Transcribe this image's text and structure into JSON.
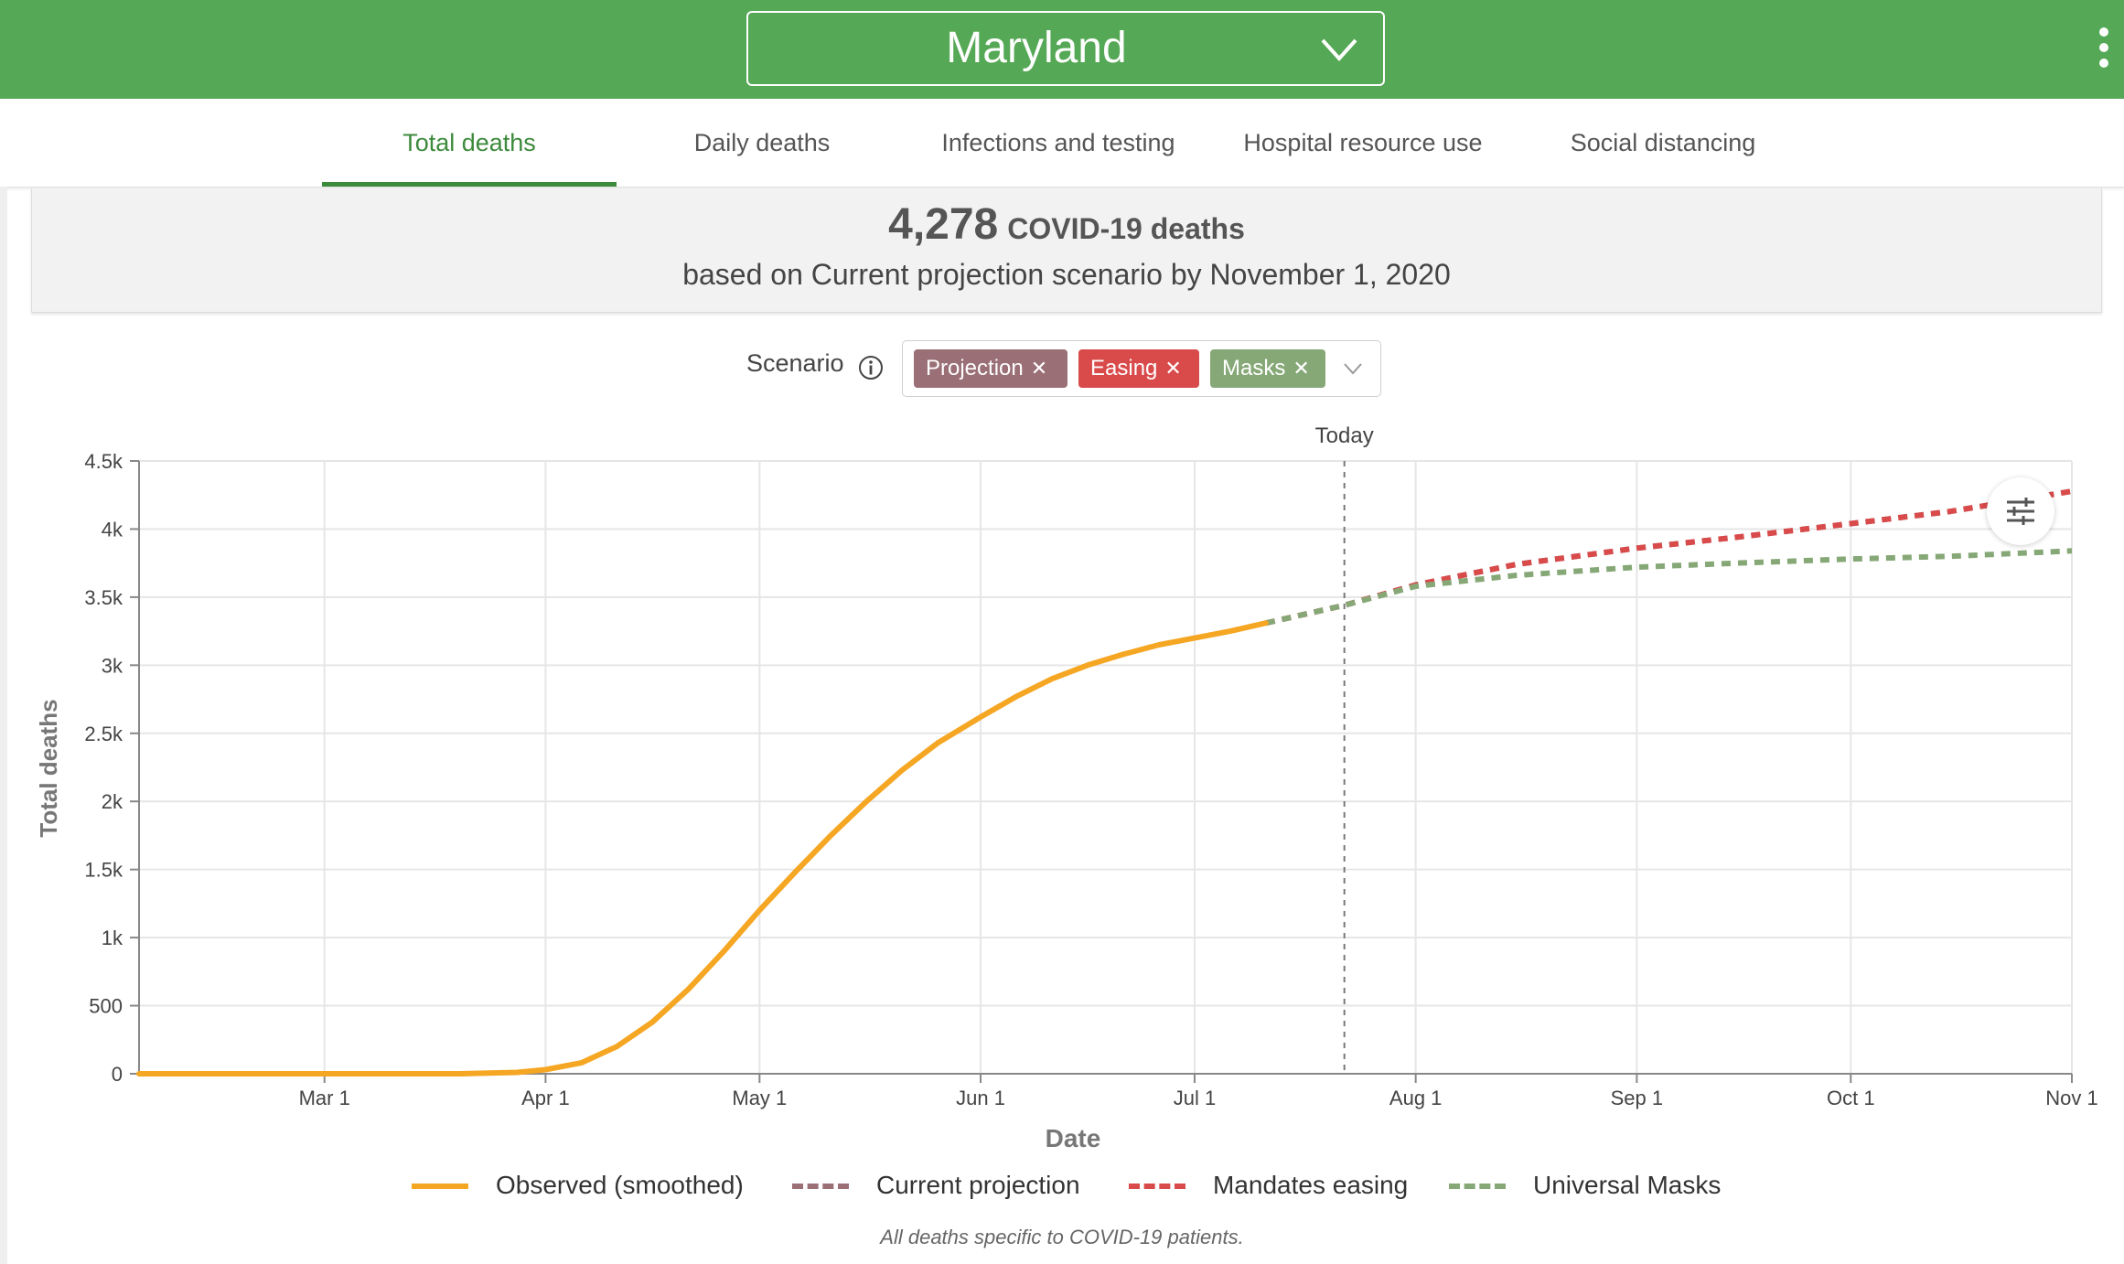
{
  "header": {
    "region": "Maryland",
    "color": "#55a855"
  },
  "tabs": [
    {
      "label": "Total deaths",
      "active": true
    },
    {
      "label": "Daily deaths",
      "active": false
    },
    {
      "label": "Infections and testing",
      "active": false
    },
    {
      "label": "Hospital resource use",
      "active": false
    },
    {
      "label": "Social distancing",
      "active": false
    }
  ],
  "summary": {
    "value": "4,278",
    "unit": "COVID-19 deaths",
    "subtitle": "based on Current projection scenario by November 1, 2020"
  },
  "scenario": {
    "label": "Scenario",
    "chips": [
      {
        "label": "Projection",
        "color": "#9a6f76"
      },
      {
        "label": "Easing",
        "color": "#d94a4a"
      },
      {
        "label": "Masks",
        "color": "#86a877"
      }
    ]
  },
  "chart_data": {
    "type": "line",
    "xlabel": "Date",
    "ylabel": "Total deaths",
    "x_ticks": [
      "Mar 1",
      "Apr 1",
      "May 1",
      "Jun 1",
      "Jul 1",
      "Aug 1",
      "Sep 1",
      "Oct 1",
      "Nov 1"
    ],
    "x_range": [
      "2020-02-04",
      "2020-11-01"
    ],
    "y_ticks": [
      "0",
      "500",
      "1k",
      "1.5k",
      "2k",
      "2.5k",
      "3k",
      "3.5k",
      "4k",
      "4.5k"
    ],
    "ylim": [
      0,
      4500
    ],
    "grid": true,
    "today": {
      "label": "Today",
      "date": "2020-07-22"
    },
    "series": [
      {
        "name": "Observed (smoothed)",
        "color": "#f5a623",
        "style": "solid",
        "points": [
          [
            "2020-02-04",
            0
          ],
          [
            "2020-03-01",
            0
          ],
          [
            "2020-03-20",
            0
          ],
          [
            "2020-03-28",
            10
          ],
          [
            "2020-04-01",
            30
          ],
          [
            "2020-04-06",
            80
          ],
          [
            "2020-04-11",
            200
          ],
          [
            "2020-04-16",
            380
          ],
          [
            "2020-04-21",
            620
          ],
          [
            "2020-04-26",
            900
          ],
          [
            "2020-05-01",
            1200
          ],
          [
            "2020-05-06",
            1480
          ],
          [
            "2020-05-11",
            1750
          ],
          [
            "2020-05-16",
            2000
          ],
          [
            "2020-05-21",
            2230
          ],
          [
            "2020-05-26",
            2430
          ],
          [
            "2020-06-01",
            2620
          ],
          [
            "2020-06-06",
            2770
          ],
          [
            "2020-06-11",
            2900
          ],
          [
            "2020-06-16",
            3000
          ],
          [
            "2020-06-21",
            3080
          ],
          [
            "2020-06-26",
            3150
          ],
          [
            "2020-07-01",
            3200
          ],
          [
            "2020-07-06",
            3250
          ],
          [
            "2020-07-11",
            3310
          ]
        ]
      },
      {
        "name": "Current projection",
        "color": "#9a6f76",
        "style": "dashed",
        "points": [
          [
            "2020-07-11",
            3310
          ],
          [
            "2020-07-22",
            3440
          ],
          [
            "2020-08-01",
            3590
          ],
          [
            "2020-08-15",
            3740
          ],
          [
            "2020-09-01",
            3860
          ],
          [
            "2020-09-15",
            3940
          ],
          [
            "2020-10-01",
            4040
          ],
          [
            "2020-10-15",
            4130
          ],
          [
            "2020-11-01",
            4278
          ]
        ]
      },
      {
        "name": "Mandates easing",
        "color": "#d94a4a",
        "style": "dashed",
        "points": [
          [
            "2020-07-11",
            3310
          ],
          [
            "2020-07-22",
            3440
          ],
          [
            "2020-08-01",
            3590
          ],
          [
            "2020-08-15",
            3740
          ],
          [
            "2020-09-01",
            3860
          ],
          [
            "2020-09-15",
            3940
          ],
          [
            "2020-10-01",
            4040
          ],
          [
            "2020-10-15",
            4130
          ],
          [
            "2020-11-01",
            4278
          ]
        ]
      },
      {
        "name": "Universal Masks",
        "color": "#86a877",
        "style": "dashed",
        "points": [
          [
            "2020-07-11",
            3310
          ],
          [
            "2020-07-22",
            3440
          ],
          [
            "2020-08-01",
            3580
          ],
          [
            "2020-08-15",
            3660
          ],
          [
            "2020-09-01",
            3720
          ],
          [
            "2020-09-15",
            3750
          ],
          [
            "2020-10-01",
            3780
          ],
          [
            "2020-10-15",
            3800
          ],
          [
            "2020-11-01",
            3840
          ]
        ]
      }
    ]
  },
  "footnote": "All deaths specific to COVID-19 patients."
}
